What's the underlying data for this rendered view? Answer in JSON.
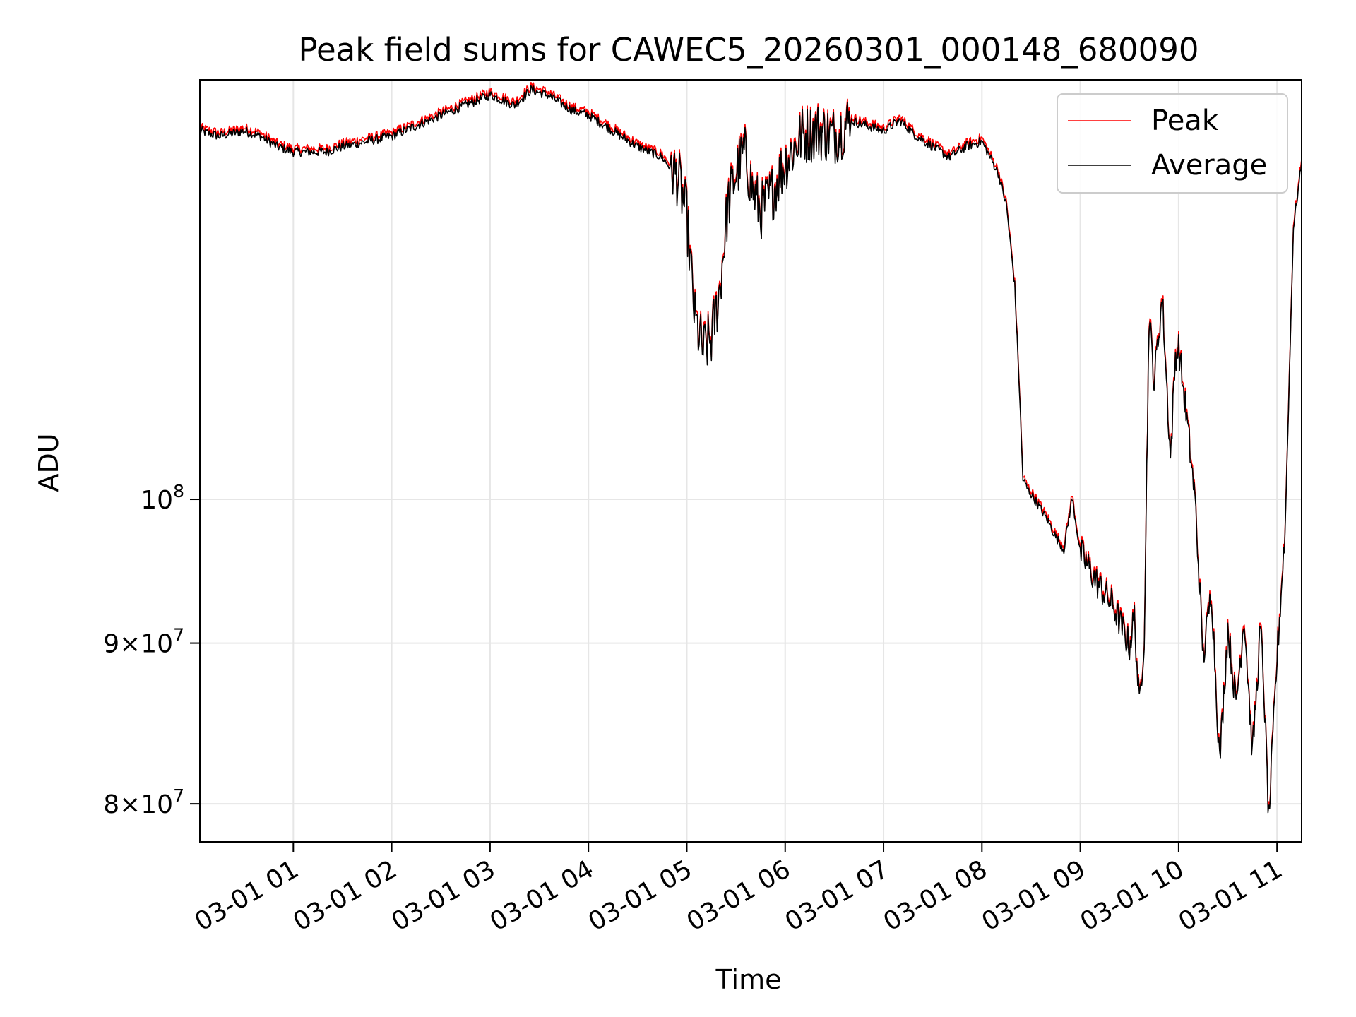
{
  "chart_data": {
    "type": "line",
    "title": "Peak field sums for CAWEC5_20260301_000148_680090",
    "xlabel": "Time",
    "ylabel": "ADU",
    "yscale": "log",
    "xlim": [
      "03-01 00:03",
      "03-01 11:15"
    ],
    "ylim": [
      77800000,
      136000000
    ],
    "grid": true,
    "legend_position": "top-right",
    "x_ticks": [
      "03-01 01",
      "03-01 02",
      "03-01 03",
      "03-01 04",
      "03-01 05",
      "03-01 06",
      "03-01 07",
      "03-01 08",
      "03-01 09",
      "03-01 10",
      "03-01 11"
    ],
    "y_ticks": [
      {
        "value": 80000000,
        "base": "8×10",
        "exp": "7"
      },
      {
        "value": 90000000,
        "base": "9×10",
        "exp": "7"
      },
      {
        "value": 100000000,
        "base": "10",
        "exp": "8"
      }
    ],
    "series": [
      {
        "name": "Peak",
        "color": "#ff0000"
      },
      {
        "name": "Average",
        "color": "#000000"
      }
    ],
    "x": [
      "00:03",
      "00:15",
      "00:30",
      "00:40",
      "00:50",
      "01:00",
      "01:10",
      "01:20",
      "01:30",
      "01:45",
      "02:00",
      "02:15",
      "02:30",
      "02:45",
      "03:00",
      "03:15",
      "03:25",
      "03:35",
      "03:50",
      "04:00",
      "04:15",
      "04:30",
      "04:45",
      "04:55",
      "05:00",
      "05:05",
      "05:10",
      "05:15",
      "05:20",
      "05:25",
      "05:30",
      "05:35",
      "05:40",
      "05:45",
      "05:50",
      "06:00",
      "06:10",
      "06:20",
      "06:30",
      "06:40",
      "06:50",
      "07:00",
      "07:10",
      "07:20",
      "07:30",
      "07:40",
      "07:50",
      "08:00",
      "08:10",
      "08:15",
      "08:20",
      "08:23",
      "08:25",
      "08:28",
      "08:30",
      "08:40",
      "08:45",
      "08:50",
      "08:55",
      "09:00",
      "09:10",
      "09:20",
      "09:30",
      "09:33",
      "09:36",
      "09:39",
      "09:42",
      "09:45",
      "09:50",
      "09:55",
      "09:58",
      "10:00",
      "10:05",
      "10:10",
      "10:15",
      "10:20",
      "10:25",
      "10:30",
      "10:35",
      "10:40",
      "10:45",
      "10:50",
      "10:52",
      "10:55",
      "11:00",
      "11:05",
      "11:10",
      "11:15"
    ],
    "values": [
      131000000,
      130500000,
      131000000,
      130500000,
      129500000,
      129000000,
      129000000,
      129000000,
      129500000,
      130000000,
      130500000,
      131500000,
      132500000,
      133500000,
      134500000,
      133500000,
      135000000,
      134500000,
      133000000,
      132500000,
      131000000,
      129500000,
      128500000,
      126500000,
      123000000,
      114000000,
      111500000,
      112500000,
      116500000,
      124000000,
      127000000,
      129000000,
      125500000,
      123500000,
      124500000,
      128000000,
      130500000,
      131000000,
      130500000,
      132000000,
      131500000,
      131000000,
      132000000,
      130500000,
      129500000,
      128500000,
      129500000,
      130000000,
      127000000,
      124000000,
      117000000,
      108000000,
      101500000,
      100700000,
      100400000,
      98500000,
      97300000,
      96400000,
      100100000,
      96200000,
      94100000,
      92500000,
      89800000,
      91800000,
      85800000,
      90500000,
      114500000,
      109000000,
      116000000,
      103000000,
      111000000,
      111800000,
      106000000,
      100000000,
      89000000,
      93600000,
      82500000,
      91000000,
      86000000,
      91800000,
      83000000,
      91000000,
      87000000,
      79000000,
      89000000,
      98000000,
      122000000,
      128000000
    ]
  }
}
